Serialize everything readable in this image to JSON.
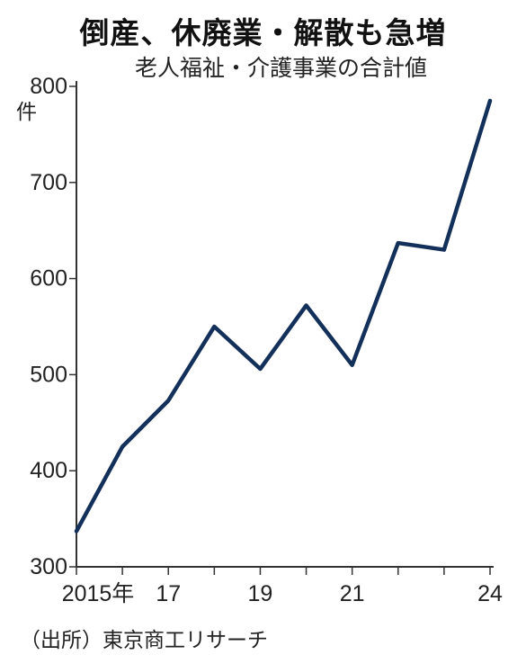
{
  "title": "倒産、休廃業・解散も急増",
  "subtitle": "老人福祉・介護事業の合計値",
  "source": "（出所）東京商工リサーチ",
  "chart_data": {
    "type": "line",
    "x": [
      2015,
      2016,
      2017,
      2018,
      2019,
      2020,
      2021,
      2022,
      2023,
      2024
    ],
    "values": [
      337,
      425,
      473,
      550,
      506,
      572,
      510,
      637,
      630,
      785
    ],
    "ylim": [
      300,
      800
    ],
    "yticks": [
      300,
      400,
      500,
      600,
      700,
      800
    ],
    "ytick_labels": [
      "300",
      "400",
      "500",
      "600",
      "700",
      "800"
    ],
    "ylabel": "件",
    "xtick_labels": [
      "2015年",
      "",
      "17",
      "",
      "19",
      "",
      "21",
      "",
      "",
      "24"
    ],
    "line_color": "#13305a",
    "axis_color": "#333333",
    "grid": false
  }
}
